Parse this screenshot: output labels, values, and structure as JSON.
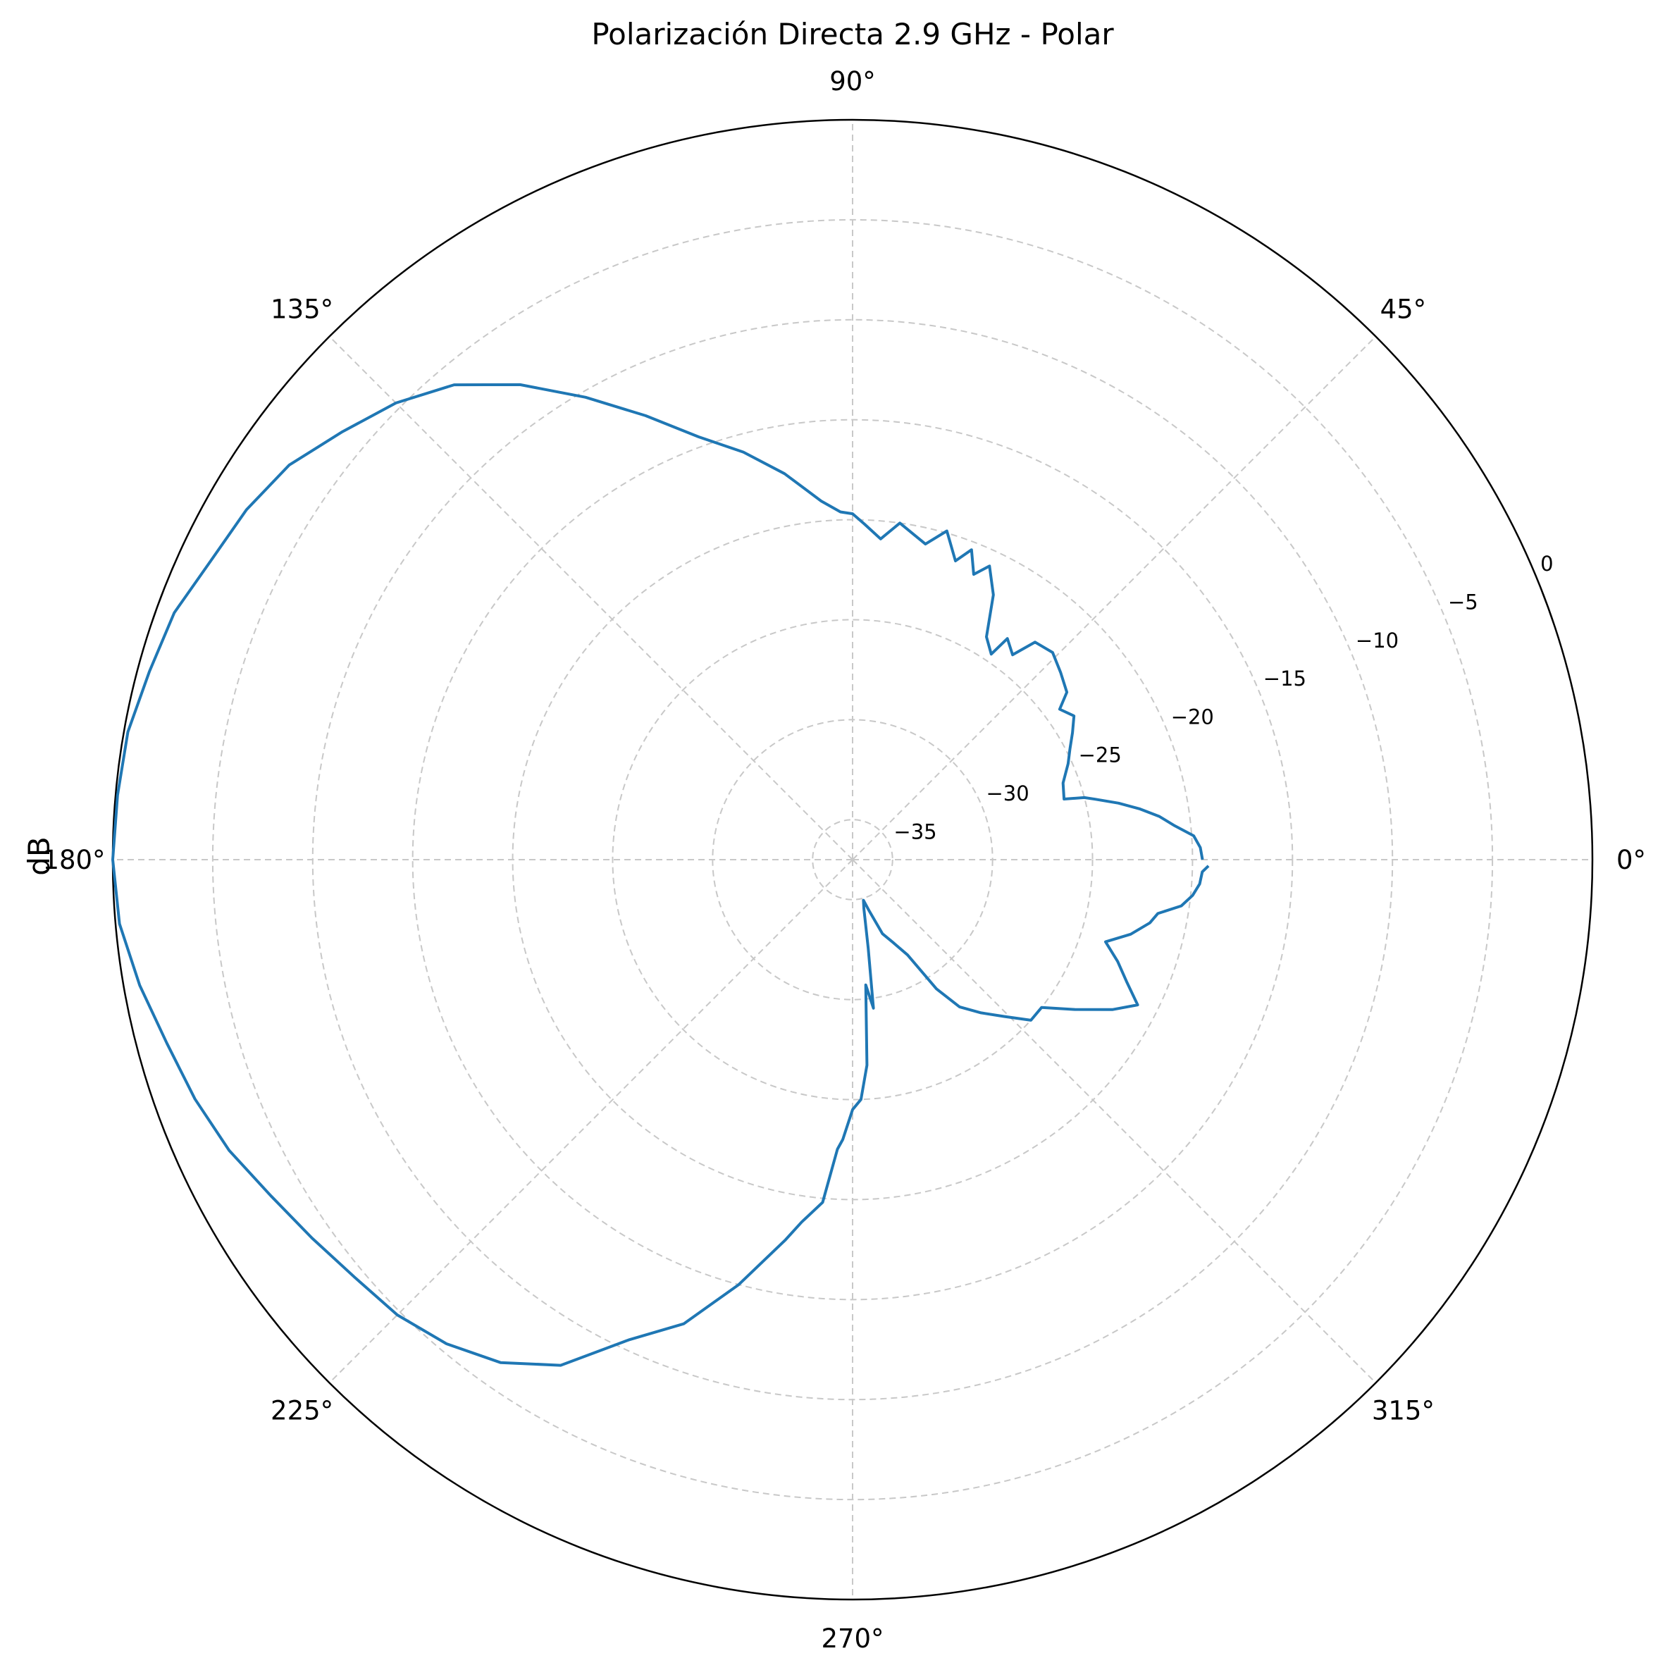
{
  "chart_data": {
    "type": "polar-line",
    "title": "Polarización Directa 2.9 GHz - Polar",
    "ylabel": "dB",
    "angle_ticks": [
      {
        "deg": 0,
        "label": "0°"
      },
      {
        "deg": 45,
        "label": "45°"
      },
      {
        "deg": 90,
        "label": "90°"
      },
      {
        "deg": 135,
        "label": "135°"
      },
      {
        "deg": 180,
        "label": "180°"
      },
      {
        "deg": 225,
        "label": "225°"
      },
      {
        "deg": 270,
        "label": "270°"
      },
      {
        "deg": 315,
        "label": "315°"
      }
    ],
    "radial_ticks": [
      {
        "value": -35,
        "label": "−35"
      },
      {
        "value": -30,
        "label": "−30"
      },
      {
        "value": -25,
        "label": "−25"
      },
      {
        "value": -20,
        "label": "−20"
      },
      {
        "value": -15,
        "label": "−15"
      },
      {
        "value": -10,
        "label": "−10"
      },
      {
        "value": -5,
        "label": "−5"
      },
      {
        "value": 0,
        "label": "0"
      }
    ],
    "rlim": [
      -37,
      0
    ],
    "radial_label_angle_deg": 22.5,
    "grid": true,
    "line_color": "#1f77b4",
    "angle_units": "degrees",
    "series": [
      {
        "angle_deg": [
          0,
          2,
          4,
          6,
          8,
          10,
          12,
          14,
          15,
          16,
          20,
          24,
          27,
          30,
          33,
          36,
          38,
          42,
          46,
          50,
          52,
          55,
          56,
          59,
          62,
          65,
          67,
          69,
          71,
          74,
          77,
          82,
          85,
          88,
          90,
          92,
          95,
          100,
          105,
          110,
          115,
          120,
          125,
          130,
          135,
          140,
          145,
          150,
          155,
          160,
          165,
          170,
          175,
          180,
          185,
          190,
          195,
          200,
          205,
          210,
          215,
          220,
          225,
          230,
          235,
          240,
          245,
          250,
          255,
          260,
          262,
          265,
          267,
          268,
          270,
          272,
          274,
          276,
          278,
          280,
          283,
          285,
          288,
          292,
          296,
          300,
          303,
          306,
          310,
          314,
          318,
          322,
          326,
          330,
          333,
          336,
          339,
          342,
          345,
          348,
          350,
          352,
          354,
          356,
          358,
          359
        ],
        "r_db": [
          -19.5,
          -19.6,
          -19.9,
          -20.8,
          -21.5,
          -22.4,
          -23.4,
          -24.5,
          -25.0,
          -26.0,
          -25.8,
          -25.2,
          -24.8,
          -24.3,
          -23.8,
          -24.2,
          -23.4,
          -23.0,
          -22.6,
          -22.8,
          -24.0,
          -23.5,
          -24.6,
          -24.0,
          -22.0,
          -20.8,
          -21.5,
          -20.4,
          -21.2,
          -19.9,
          -20.8,
          -20.0,
          -20.9,
          -20.2,
          -19.7,
          -19.6,
          -19.0,
          -17.4,
          -15.9,
          -14.5,
          -12.5,
          -10.3,
          -8.0,
          -6.0,
          -4.7,
          -3.7,
          -2.6,
          -2.0,
          -1.6,
          -0.9,
          -0.6,
          -0.2,
          -0.1,
          0.0,
          -0.2,
          -0.8,
          -1.5,
          -2.0,
          -2.6,
          -3.4,
          -4.0,
          -4.5,
          -4.8,
          -5.4,
          -6.3,
          -7.8,
          -10.5,
          -12.3,
          -15.0,
          -17.7,
          -18.7,
          -19.8,
          -22.5,
          -23.0,
          -24.5,
          -25.0,
          -26.7,
          -30.7,
          -29.5,
          -32.5,
          -34.5,
          -34.9,
          -34.3,
          -33.0,
          -32.4,
          -31.5,
          -29.3,
          -27.9,
          -27.0,
          -26.1,
          -25.0,
          -25.0,
          -23.6,
          -22.0,
          -21.0,
          -22.0,
          -22.8,
          -23.7,
          -22.6,
          -21.8,
          -21.5,
          -20.4,
          -19.9,
          -19.6,
          -19.5,
          -19.2
        ]
      }
    ]
  }
}
